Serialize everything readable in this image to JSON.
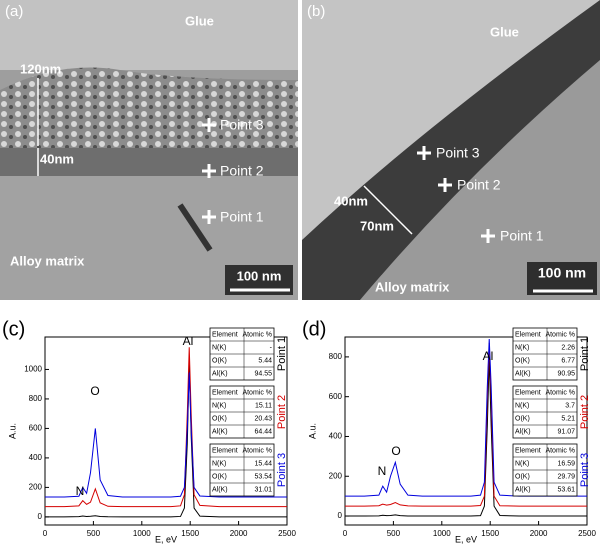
{
  "images": [
    {
      "label": "(a)",
      "texts": [
        "Glue",
        "120nm",
        "40nm",
        "Point 3",
        "Point 2",
        "Point 1",
        "Alloy matrix"
      ],
      "scale_bar": "100 nm"
    },
    {
      "label": "(b)",
      "texts": [
        "Glue",
        "Point 3",
        "Point 2",
        "40nm",
        "70nm",
        "Point 1",
        "Alloy matrix"
      ],
      "scale_bar": "100 nm"
    }
  ],
  "chart_data": [
    {
      "type": "line",
      "label": "(c)",
      "x_label": "E, eV",
      "y_label": "A.u.",
      "xlim": [
        0,
        2500
      ],
      "xticks": [
        0,
        500,
        1000,
        1500,
        2000,
        2500
      ],
      "ylim": [
        -55,
        1220
      ],
      "yticks": [
        0,
        200,
        400,
        600,
        800,
        1000
      ],
      "annotations": [
        "N",
        "O",
        "Al"
      ],
      "x": [
        0,
        200,
        350,
        390,
        430,
        470,
        520,
        570,
        650,
        800,
        1000,
        1300,
        1400,
        1440,
        1470,
        1490,
        1510,
        1540,
        1600,
        1800,
        2000,
        2500
      ],
      "series": [
        {
          "name": "Point 1",
          "color": "#000000",
          "values": [
            0,
            0,
            2,
            6,
            3,
            4,
            8,
            3,
            1,
            0,
            0,
            0,
            3,
            60,
            500,
            1050,
            550,
            60,
            5,
            0,
            0,
            0
          ]
        },
        {
          "name": "Point 2",
          "color": "#d40000",
          "values": [
            70,
            70,
            75,
            110,
            85,
            100,
            190,
            95,
            72,
            70,
            70,
            70,
            75,
            150,
            700,
            1150,
            700,
            150,
            78,
            70,
            70,
            70
          ]
        },
        {
          "name": "Point 3",
          "color": "#0000dd",
          "values": [
            135,
            135,
            140,
            200,
            160,
            300,
            600,
            250,
            145,
            135,
            135,
            135,
            140,
            200,
            600,
            980,
            600,
            200,
            142,
            135,
            135,
            135
          ]
        }
      ],
      "tables": [
        {
          "header": [
            "Element",
            "Atomic %"
          ],
          "rows": [
            [
              "N(K)",
              "-"
            ],
            [
              "O(K)",
              "5.44"
            ],
            [
              "Al(K)",
              "94.55"
            ]
          ]
        },
        {
          "header": [
            "Element",
            "Atomic %"
          ],
          "rows": [
            [
              "N(K)",
              "15.11"
            ],
            [
              "O(K)",
              "20.43"
            ],
            [
              "Al(K)",
              "64.44"
            ]
          ]
        },
        {
          "header": [
            "Element",
            "Atomic %"
          ],
          "rows": [
            [
              "N(K)",
              "15.44"
            ],
            [
              "O(K)",
              "53.54"
            ],
            [
              "Al(K)",
              "31.01"
            ]
          ]
        }
      ]
    },
    {
      "type": "line",
      "label": "(d)",
      "x_label": "E, eV",
      "y_label": "A.u.",
      "xlim": [
        0,
        2500
      ],
      "xticks": [
        0,
        500,
        1000,
        1500,
        2000,
        2500
      ],
      "ylim": [
        -45,
        900
      ],
      "yticks": [
        0,
        200,
        400,
        600,
        800
      ],
      "annotations": [
        "N",
        "O",
        "Al"
      ],
      "x": [
        0,
        200,
        350,
        390,
        430,
        470,
        520,
        570,
        650,
        800,
        1000,
        1300,
        1400,
        1440,
        1470,
        1490,
        1510,
        1540,
        1600,
        1800,
        2000,
        2500
      ],
      "series": [
        {
          "name": "Point 1",
          "color": "#000000",
          "values": [
            0,
            0,
            1,
            4,
            2,
            3,
            6,
            2,
            0,
            0,
            0,
            0,
            2,
            50,
            450,
            800,
            450,
            50,
            3,
            0,
            0,
            0
          ]
        },
        {
          "name": "Point 2",
          "color": "#d40000",
          "values": [
            50,
            50,
            52,
            60,
            55,
            58,
            68,
            56,
            51,
            50,
            50,
            50,
            53,
            100,
            600,
            870,
            600,
            100,
            52,
            50,
            50,
            50
          ]
        },
        {
          "name": "Point 3",
          "color": "#0000dd",
          "values": [
            100,
            100,
            105,
            150,
            120,
            200,
            270,
            160,
            105,
            100,
            100,
            100,
            105,
            170,
            650,
            890,
            650,
            170,
            105,
            100,
            100,
            100
          ]
        }
      ],
      "tables": [
        {
          "header": [
            "Element",
            "Atomic %"
          ],
          "rows": [
            [
              "N(K)",
              "2.26"
            ],
            [
              "O(K)",
              "6.77"
            ],
            [
              "Al(K)",
              "90.95"
            ]
          ]
        },
        {
          "header": [
            "Element",
            "Atomic %"
          ],
          "rows": [
            [
              "N(K)",
              "3.7"
            ],
            [
              "O(K)",
              "5.21"
            ],
            [
              "Al(K)",
              "91.07"
            ]
          ]
        },
        {
          "header": [
            "Element",
            "Atomic %"
          ],
          "rows": [
            [
              "N(K)",
              "16.59"
            ],
            [
              "O(K)",
              "29.79"
            ],
            [
              "Al(K)",
              "53.61"
            ]
          ]
        }
      ]
    }
  ]
}
